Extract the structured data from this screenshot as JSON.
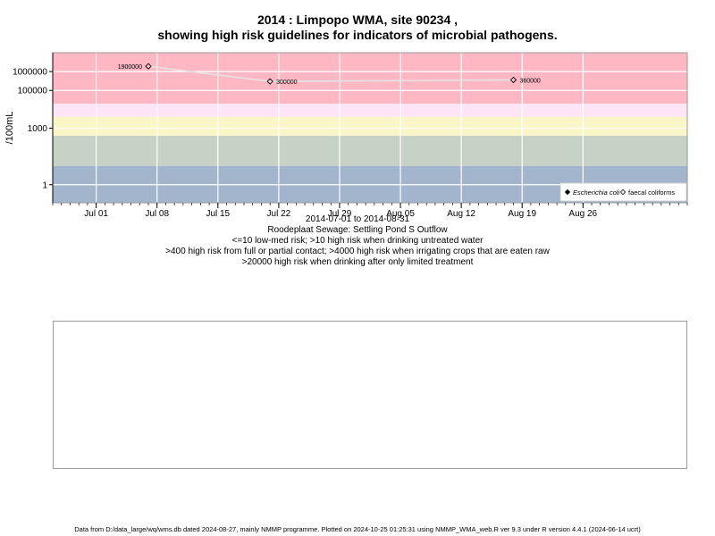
{
  "chart_data": {
    "type": "line",
    "title_line1": "2014 : Limpopo WMA, site 90234 ,",
    "title_line2": "showing high risk guidelines for indicators of microbial pathogens.",
    "ylabel": "/100mL",
    "y_scale": "log",
    "ylim": [
      0.11,
      10000000
    ],
    "y_ticks": [
      {
        "value": 1,
        "label": "1"
      },
      {
        "value": 1000,
        "label": "1000"
      },
      {
        "value": 100000,
        "label": "100000"
      },
      {
        "value": 1000000,
        "label": "1000000"
      }
    ],
    "xlim": [
      "2014-06-26",
      "2014-09-07"
    ],
    "x_ticks": [
      {
        "date": "2014-07-01",
        "label": "Jul 01"
      },
      {
        "date": "2014-07-08",
        "label": "Jul 08"
      },
      {
        "date": "2014-07-15",
        "label": "Jul 15"
      },
      {
        "date": "2014-07-22",
        "label": "Jul 22"
      },
      {
        "date": "2014-07-29",
        "label": "Jul 29"
      },
      {
        "date": "2014-08-05",
        "label": "Aug 05"
      },
      {
        "date": "2014-08-12",
        "label": "Aug 12"
      },
      {
        "date": "2014-08-19",
        "label": "Aug 19"
      },
      {
        "date": "2014-08-26",
        "label": "Aug 26"
      }
    ],
    "bands": [
      {
        "from": 0.11,
        "to": 10,
        "color": "#a3b4cd"
      },
      {
        "from": 10,
        "to": 400,
        "color": "#c7d2c6"
      },
      {
        "from": 400,
        "to": 4000,
        "color": "#fbf6c8"
      },
      {
        "from": 4000,
        "to": 20000,
        "color": "#fde5f5"
      },
      {
        "from": 20000,
        "to": 10000000,
        "color": "#ffb7c3"
      }
    ],
    "series": [
      {
        "name": "faecal coliforms",
        "marker": "open-diamond",
        "points": [
          {
            "date": "2014-07-07",
            "value": 1900000,
            "label": "1900000"
          },
          {
            "date": "2014-07-21",
            "value": 300000,
            "label": "300000"
          },
          {
            "date": "2014-08-18",
            "value": 360000,
            "label": "360000"
          }
        ]
      }
    ],
    "legend": {
      "position": "bottom-right",
      "entries": [
        {
          "label": "Escherichia coli",
          "marker": "filled-diamond",
          "italic": true
        },
        {
          "label": "faecal coliforms",
          "marker": "open-diamond",
          "italic": false
        }
      ]
    },
    "grid": true,
    "colors": {
      "line": "#e3e3e3",
      "grid": "#ffffff"
    }
  },
  "captions": {
    "date_range": "2014-07-01 to 2014-08-31",
    "site_name": "Roodeplaat Sewage: Settling Pond S Outflow",
    "rule1": "<=10 low-med risk; >10 high risk when drinking untreated water",
    "rule2": ">400 high risk from full or partial contact; >4000 high risk when irrigating crops that are eaten raw",
    "rule3": ">20000 high risk when drinking after only limited treatment"
  },
  "footer": "Data from D:/data_large/wq/wms.db dated 2024-08-27, mainly NMMP programme. Plotted on 2024-10-25 01:25:31 using NMMP_WMA_web.R ver 9.3 under R version 4.4.1 (2024-06-14 ucrt)"
}
